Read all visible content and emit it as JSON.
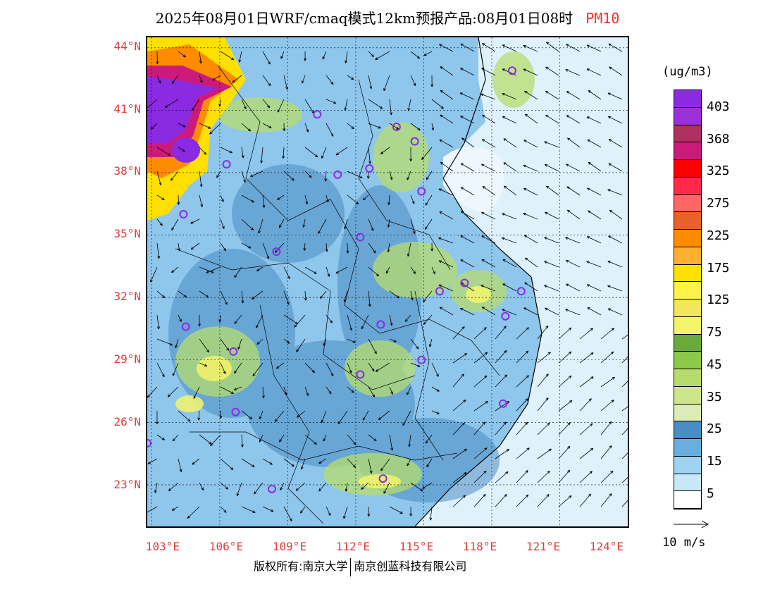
{
  "title": {
    "main": "2025年08月01日WRF/cmaq模式12km预报产品:08月01日08时",
    "variable": "PM10"
  },
  "map": {
    "latitude_labels": [
      "44°N",
      "41°N",
      "38°N",
      "35°N",
      "32°N",
      "29°N",
      "26°N",
      "23°N"
    ],
    "longitude_labels": [
      "103°E",
      "106°E",
      "109°E",
      "112°E",
      "115°E",
      "118°E",
      "121°E",
      "124°E"
    ],
    "lat_range": [
      21,
      44.5
    ],
    "lon_range": [
      102.8,
      124
    ],
    "cities": [
      {
        "lon": 118.9,
        "lat": 42.9
      },
      {
        "lon": 110.3,
        "lat": 40.8
      },
      {
        "lon": 113.8,
        "lat": 40.2
      },
      {
        "lon": 114.6,
        "lat": 39.5
      },
      {
        "lon": 106.3,
        "lat": 38.4
      },
      {
        "lon": 111.2,
        "lat": 37.9
      },
      {
        "lon": 112.6,
        "lat": 38.2
      },
      {
        "lon": 114.9,
        "lat": 37.1
      },
      {
        "lon": 104.4,
        "lat": 36.0
      },
      {
        "lon": 112.2,
        "lat": 34.9
      },
      {
        "lon": 108.5,
        "lat": 34.2
      },
      {
        "lon": 116.8,
        "lat": 32.7
      },
      {
        "lon": 115.7,
        "lat": 32.3
      },
      {
        "lon": 119.3,
        "lat": 32.3
      },
      {
        "lon": 118.6,
        "lat": 31.1
      },
      {
        "lon": 104.5,
        "lat": 30.6
      },
      {
        "lon": 113.1,
        "lat": 30.7
      },
      {
        "lon": 106.6,
        "lat": 29.4
      },
      {
        "lon": 114.9,
        "lat": 29.0
      },
      {
        "lon": 112.2,
        "lat": 28.3
      },
      {
        "lon": 118.5,
        "lat": 26.9
      },
      {
        "lon": 106.7,
        "lat": 26.5
      },
      {
        "lon": 102.8,
        "lat": 25.0
      },
      {
        "lon": 108.3,
        "lat": 22.8
      },
      {
        "lon": 113.2,
        "lat": 23.3
      }
    ]
  },
  "colorbar": {
    "unit": "(ug/m3)",
    "labels": [
      "403",
      "368",
      "325",
      "275",
      "225",
      "175",
      "125",
      "75",
      "45",
      "35",
      "25",
      "15",
      "5"
    ],
    "colors": [
      "#8a2be2",
      "#9b30d9",
      "#b03060",
      "#cc1a7a",
      "#ff0000",
      "#ff2a4a",
      "#ff6666",
      "#e8602a",
      "#ff8c00",
      "#ffb030",
      "#ffe000",
      "#fff24a",
      "#f2e65c",
      "#f4f46a",
      "#6aaa3a",
      "#8cc84a",
      "#b6dc6e",
      "#cde68c",
      "#dcecb8",
      "#4a8cc4",
      "#6aaee0",
      "#9ed4f2",
      "#c8e8f8",
      "#ffffff"
    ]
  },
  "vector": {
    "label": "10 m/s"
  },
  "footer": {
    "left": "版权所有:南京大学",
    "right": "南京创蓝科技有限公司"
  },
  "colors": {
    "axis_label": "#e23b3b",
    "city_marker": "#8a2be2",
    "land": "#a8d4f0",
    "sea": "#dff1fb"
  }
}
